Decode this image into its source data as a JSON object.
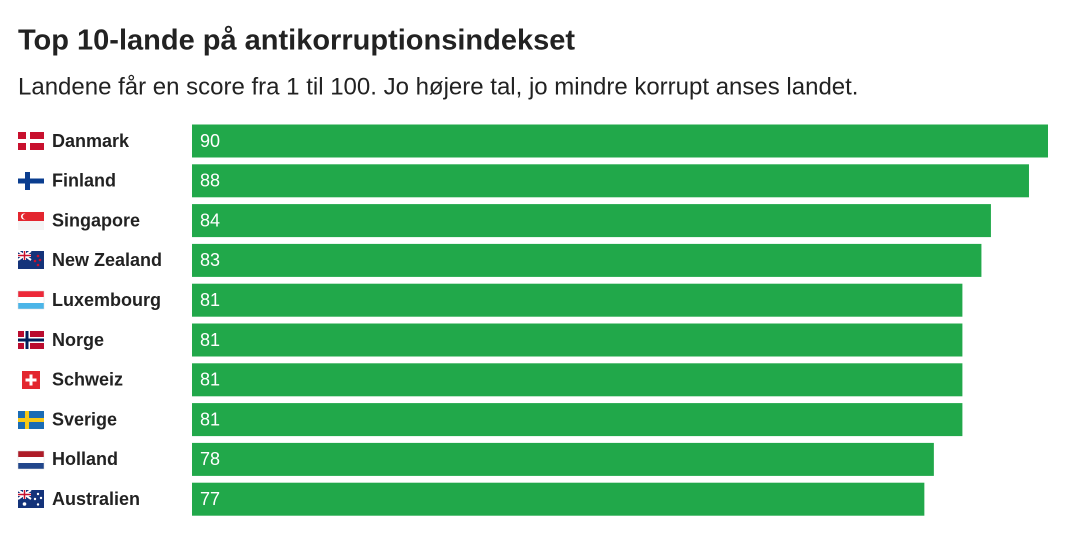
{
  "chart_data": {
    "type": "bar",
    "orientation": "horizontal",
    "title": "Top 10-lande på antikorruptionsindekset",
    "subtitle": "Landene får en score fra 1 til 100. Jo højere tal, jo mindre korrupt anses landet.",
    "categories": [
      "Danmark",
      "Finland",
      "Singapore",
      "New Zealand",
      "Luxembourg",
      "Norge",
      "Schweiz",
      "Sverige",
      "Holland",
      "Australien"
    ],
    "values": [
      90,
      88,
      84,
      83,
      81,
      81,
      81,
      81,
      78,
      77
    ],
    "color": "#21a84a"
  }
}
